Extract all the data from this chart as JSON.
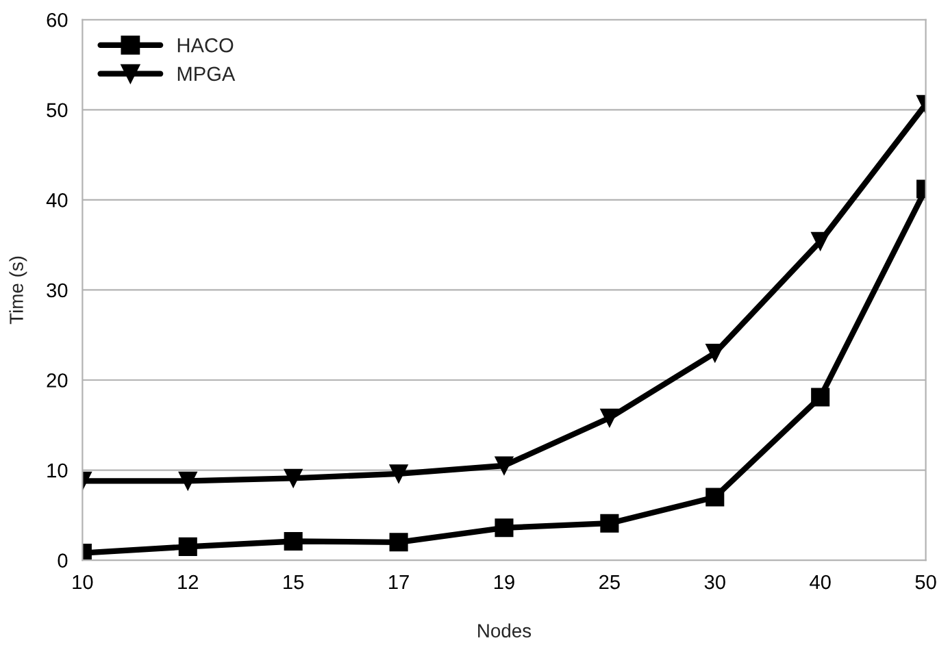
{
  "chart_data": {
    "type": "line",
    "xlabel": "Nodes",
    "ylabel": "Time (s)",
    "categories": [
      "10",
      "12",
      "15",
      "17",
      "19",
      "25",
      "30",
      "40",
      "50"
    ],
    "series": [
      {
        "name": "HACO",
        "color": "#000000",
        "marker": "square",
        "values": [
          0.8,
          1.5,
          2.1,
          2.0,
          3.6,
          4.1,
          7.0,
          18.1,
          41.2
        ]
      },
      {
        "name": "MPGA",
        "color": "#000000",
        "marker": "triangle",
        "values": [
          8.8,
          8.8,
          9.1,
          9.6,
          10.5,
          15.8,
          23.0,
          35.4,
          50.6
        ]
      }
    ],
    "ylim": [
      0,
      60
    ],
    "yticks": [
      0,
      10,
      20,
      30,
      40,
      50,
      60
    ],
    "grid": "y",
    "legend": "top left",
    "line_style": "solid"
  }
}
